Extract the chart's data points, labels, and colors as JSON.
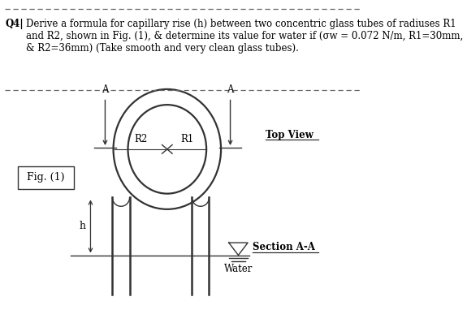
{
  "bg_color": "#ffffff",
  "text_color": "#000000",
  "line_color": "#333333",
  "dash_color": "#666666",
  "title_q": "Q4|",
  "title_l1": "Derive a formula for capillary rise (h) between two concentric glass tubes of radiuses R1",
  "title_l2": "and R2, shown in Fig. (1), & determine its value for water if (σw = 0.072 N/m, R1=30mm,",
  "title_l3": "& R2=36mm) (Take smooth and very clean glass tubes).",
  "fig_label": "Fig. (1)",
  "top_view_label": "Top View",
  "section_label": "Section A-A",
  "water_label": "Water",
  "R1_label": "R1",
  "R2_label": "R2",
  "A_label": "A",
  "h_label": "h"
}
